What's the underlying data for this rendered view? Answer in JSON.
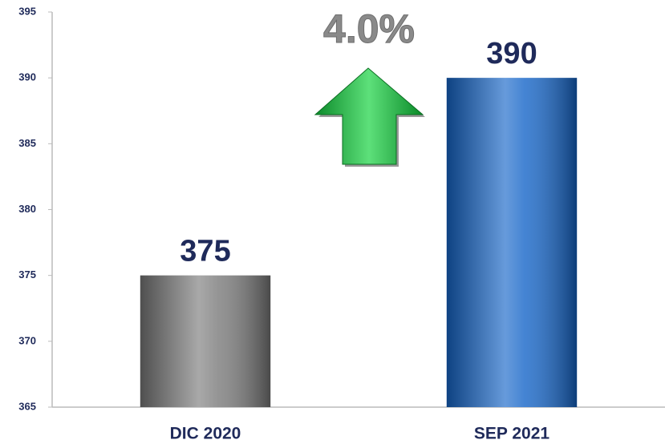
{
  "chart_data": {
    "type": "bar",
    "categories": [
      "DIC 2020",
      "SEP 2021"
    ],
    "values": [
      375,
      390
    ],
    "colors": [
      "#7a7a7a",
      "#1565c8"
    ],
    "annotation": "4.0%",
    "ylim": [
      365,
      395
    ],
    "yticks": [
      365,
      370,
      375,
      380,
      385,
      390,
      395
    ],
    "grid": false
  }
}
